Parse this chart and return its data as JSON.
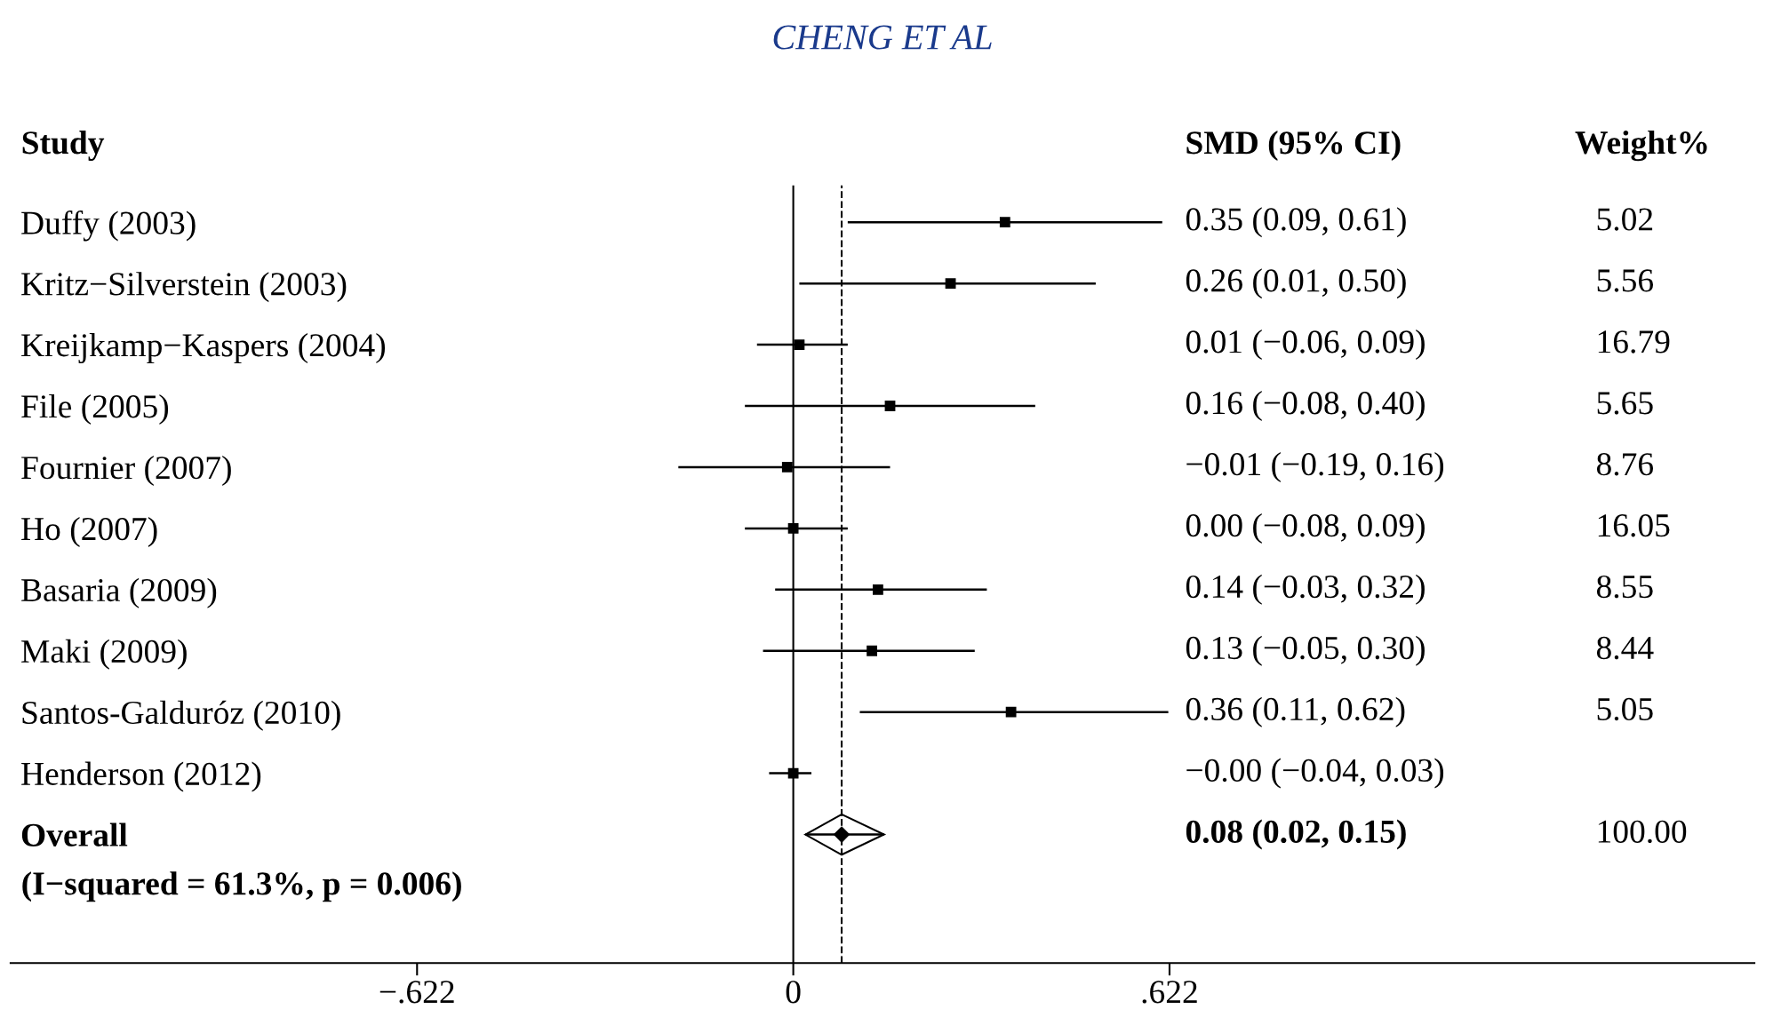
{
  "chart_data": {
    "type": "scatter",
    "orientation": "horizontal",
    "title": "CHENG ET AL",
    "categories": [
      "Duffy (2003)",
      "Kritz−Silverstein (2003)",
      "Kreijkamp−Kaspers (2004)",
      "File (2005)",
      "Fournier (2007)",
      "Ho (2007)",
      "Basaria (2009)",
      "Maki (2009)",
      "Santos-Galduróz (2010)",
      "Henderson (2012)",
      "Overall"
    ],
    "series": [
      {
        "color": "#000000",
        "marker": "square",
        "values": [
          0.35,
          0.26,
          0.01,
          0.16,
          -0.01,
          0.0,
          0.14,
          0.13,
          0.36,
          -0.0,
          null
        ],
        "errors": [
          [
            0.09,
            0.61
          ],
          [
            0.01,
            0.5
          ],
          [
            -0.06,
            0.09
          ],
          [
            -0.08,
            0.4
          ],
          [
            -0.19,
            0.16
          ],
          [
            -0.08,
            0.09
          ],
          [
            -0.03,
            0.32
          ],
          [
            -0.05,
            0.3
          ],
          [
            0.11,
            0.62
          ],
          [
            -0.04,
            0.03
          ],
          null
        ]
      },
      {
        "color": "#000000",
        "marker": "diamond",
        "values": [
          null,
          null,
          null,
          null,
          null,
          null,
          null,
          null,
          null,
          null,
          0.08
        ],
        "errors": [
          null,
          null,
          null,
          null,
          null,
          null,
          null,
          null,
          null,
          null,
          [
            0.02,
            0.15
          ]
        ]
      }
    ],
    "xlim": [
      -1.294,
      1.589
    ],
    "xticks": [
      {
        "value": -0.622,
        "label": "−.622"
      },
      0,
      {
        "value": 0.622,
        "label": ".622"
      }
    ],
    "ref_lines": [
      {
        "axis": "x",
        "value": 0,
        "line_style": "solid",
        "color": "#000000"
      },
      {
        "axis": "x",
        "value": 0.08,
        "line_style": "dashed",
        "color": "#000000"
      }
    ],
    "annotations": [
      "Study",
      "SMD (95% CI)",
      "Weight%",
      "(I−squared = 61.3%, p = 0.006)",
      "5.02",
      "5.56",
      "16.79",
      "5.65",
      "8.76",
      "16.05",
      "8.55",
      "8.44",
      "5.05",
      null,
      "100.00",
      "0.35 (0.09, 0.61)",
      "0.26 (0.01, 0.50)",
      "0.01 (−0.06, 0.09)",
      "0.16 (−0.08, 0.40)",
      "−0.01 (−0.19, 0.16)",
      "0.00 (−0.08, 0.09)",
      "0.14 (−0.03, 0.32)",
      "0.13 (−0.05, 0.30)",
      "0.36 (0.11, 0.62)",
      "−0.00 (−0.04, 0.03)",
      "0.08 (0.02, 0.15)"
    ],
    "grid": false
  }
}
